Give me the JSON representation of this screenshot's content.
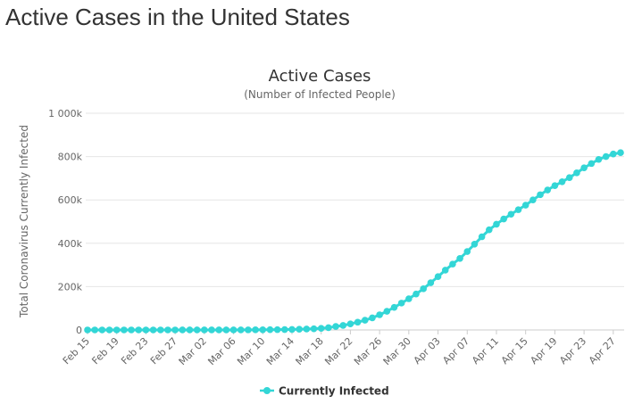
{
  "page": {
    "heading": "Active Cases in the United States"
  },
  "colors": {
    "series": "#33d6d6",
    "grid": "#e6e6e6",
    "axis_text": "#666666",
    "title": "#333333"
  },
  "chart_data": {
    "type": "line",
    "title": "Active Cases",
    "subtitle": "(Number of Infected People)",
    "xlabel": "",
    "ylabel": "Total Coronavirus Currently Infected",
    "ylim": [
      0,
      1000000
    ],
    "y_ticks": [
      {
        "value": 0,
        "label": "0"
      },
      {
        "value": 200000,
        "label": "200k"
      },
      {
        "value": 400000,
        "label": "400k"
      },
      {
        "value": 600000,
        "label": "600k"
      },
      {
        "value": 800000,
        "label": "800k"
      },
      {
        "value": 1000000,
        "label": "1 000k"
      }
    ],
    "x_tick_labels": [
      "Feb 15",
      "Feb 19",
      "Feb 23",
      "Feb 27",
      "Mar 02",
      "Mar 06",
      "Mar 10",
      "Mar 14",
      "Mar 18",
      "Mar 22",
      "Mar 26",
      "Mar 30",
      "Apr 03",
      "Apr 07",
      "Apr 11",
      "Apr 15",
      "Apr 19",
      "Apr 23",
      "Apr 27"
    ],
    "grid": true,
    "legend": "bottom-center",
    "x": [
      "Feb 15",
      "Feb 16",
      "Feb 17",
      "Feb 18",
      "Feb 19",
      "Feb 20",
      "Feb 21",
      "Feb 22",
      "Feb 23",
      "Feb 24",
      "Feb 25",
      "Feb 26",
      "Feb 27",
      "Feb 28",
      "Feb 29",
      "Mar 01",
      "Mar 02",
      "Mar 03",
      "Mar 04",
      "Mar 05",
      "Mar 06",
      "Mar 07",
      "Mar 08",
      "Mar 09",
      "Mar 10",
      "Mar 11",
      "Mar 12",
      "Mar 13",
      "Mar 14",
      "Mar 15",
      "Mar 16",
      "Mar 17",
      "Mar 18",
      "Mar 19",
      "Mar 20",
      "Mar 21",
      "Mar 22",
      "Mar 23",
      "Mar 24",
      "Mar 25",
      "Mar 26",
      "Mar 27",
      "Mar 28",
      "Mar 29",
      "Mar 30",
      "Mar 31",
      "Apr 01",
      "Apr 02",
      "Apr 03",
      "Apr 04",
      "Apr 05",
      "Apr 06",
      "Apr 07",
      "Apr 08",
      "Apr 09",
      "Apr 10",
      "Apr 11",
      "Apr 12",
      "Apr 13",
      "Apr 14",
      "Apr 15",
      "Apr 16",
      "Apr 17",
      "Apr 18",
      "Apr 19",
      "Apr 20",
      "Apr 21",
      "Apr 22",
      "Apr 23",
      "Apr 24",
      "Apr 25",
      "Apr 26",
      "Apr 27",
      "Apr 28"
    ],
    "series": [
      {
        "name": "Currently Infected",
        "values": [
          12,
          12,
          12,
          12,
          12,
          12,
          12,
          12,
          12,
          40,
          40,
          45,
          50,
          55,
          60,
          70,
          90,
          105,
          130,
          200,
          240,
          380,
          480,
          580,
          850,
          1100,
          1500,
          2000,
          2500,
          3200,
          4200,
          5600,
          7500,
          10500,
          16000,
          21000,
          28000,
          36000,
          45000,
          56000,
          70000,
          86000,
          104000,
          124000,
          144000,
          166000,
          190000,
          218000,
          246000,
          276000,
          304000,
          330000,
          362000,
          396000,
          430000,
          462000,
          488000,
          512000,
          534000,
          555000,
          576000,
          600000,
          624000,
          646000,
          666000,
          684000,
          703000,
          725000,
          748000,
          768000,
          787000,
          800000,
          812000,
          818000
        ]
      }
    ]
  }
}
